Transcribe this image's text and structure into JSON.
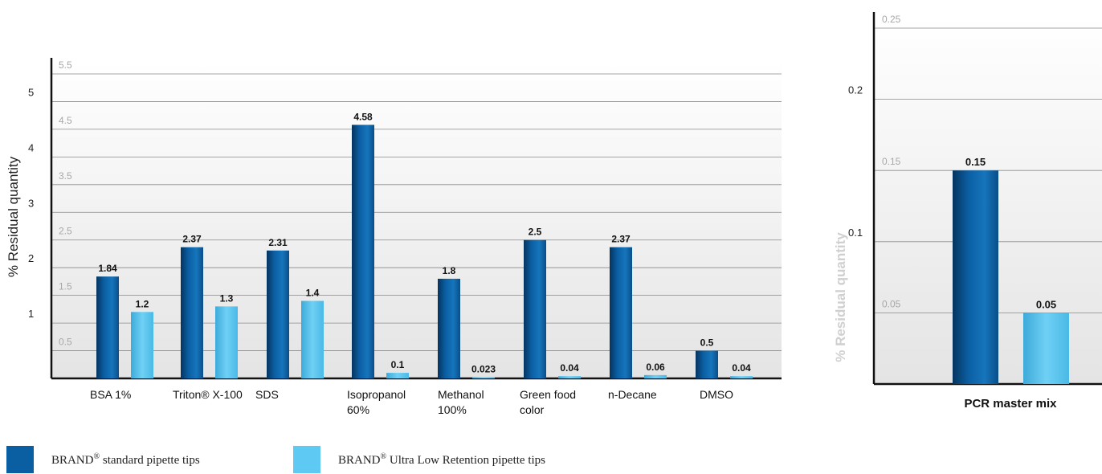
{
  "colors": {
    "standard": "#0a5fa3",
    "ultra_low": "#5ec9f2",
    "tick_dark": "#222222",
    "tick_light": "#a8a8a8"
  },
  "chart_data": [
    {
      "type": "bar",
      "ylabel": "% Residual quantity",
      "ylim": [
        0,
        5.5
      ],
      "yticks_major": [
        "1",
        "2",
        "3",
        "4",
        "5"
      ],
      "yticks_minor": [
        "0.5",
        "1.5",
        "2.5",
        "3.5",
        "4.5",
        "5.5"
      ],
      "categories": [
        "BSA 1%",
        "Triton® X-100",
        "SDS",
        "Isopropanol 60%",
        "Methanol 100%",
        "Green food color",
        "n-Decane",
        "DMSO"
      ],
      "category_lines": [
        [
          "BSA 1%"
        ],
        [
          "Triton® X-100"
        ],
        [
          "SDS"
        ],
        [
          "Isopropanol",
          "60%"
        ],
        [
          "Methanol",
          "100%"
        ],
        [
          "Green food",
          "color"
        ],
        [
          "n-Decane"
        ],
        [
          "DMSO"
        ]
      ],
      "series": [
        {
          "values": [
            1.84,
            2.37,
            2.31,
            4.58,
            1.8,
            2.5,
            2.37,
            0.5
          ],
          "labels": [
            "1.84",
            "2.37",
            "2.31",
            "4.58",
            "1.8",
            "2.5",
            "2.37",
            "0.5"
          ]
        },
        {
          "values": [
            1.2,
            1.3,
            1.4,
            0.1,
            0.023,
            0.04,
            0.06,
            0.04
          ],
          "labels": [
            "1.2",
            "1.3",
            "1.4",
            "0.1",
            "0.023",
            "0.04",
            "0.06",
            "0.04"
          ]
        }
      ],
      "grid": true
    },
    {
      "type": "bar",
      "ylabel": "% Residual quantity",
      "ylim": [
        0,
        0.25
      ],
      "yticks_major": [
        "0.1",
        "0.2"
      ],
      "yticks_minor": [
        "0.05",
        "0.15",
        "0.25"
      ],
      "categories": [
        "PCR master mix"
      ],
      "series": [
        {
          "values": [
            0.15
          ],
          "labels": [
            "0.15"
          ]
        },
        {
          "values": [
            0.05
          ],
          "labels": [
            "0.05"
          ]
        }
      ],
      "grid": true
    }
  ],
  "legend": {
    "standard_brand": "BRAND",
    "standard_reg": "®",
    "standard_text": " standard pipette tips",
    "ultra_brand": "BRAND",
    "ultra_reg": "®",
    "ultra_text": " Ultra Low Retention pipette tips"
  }
}
